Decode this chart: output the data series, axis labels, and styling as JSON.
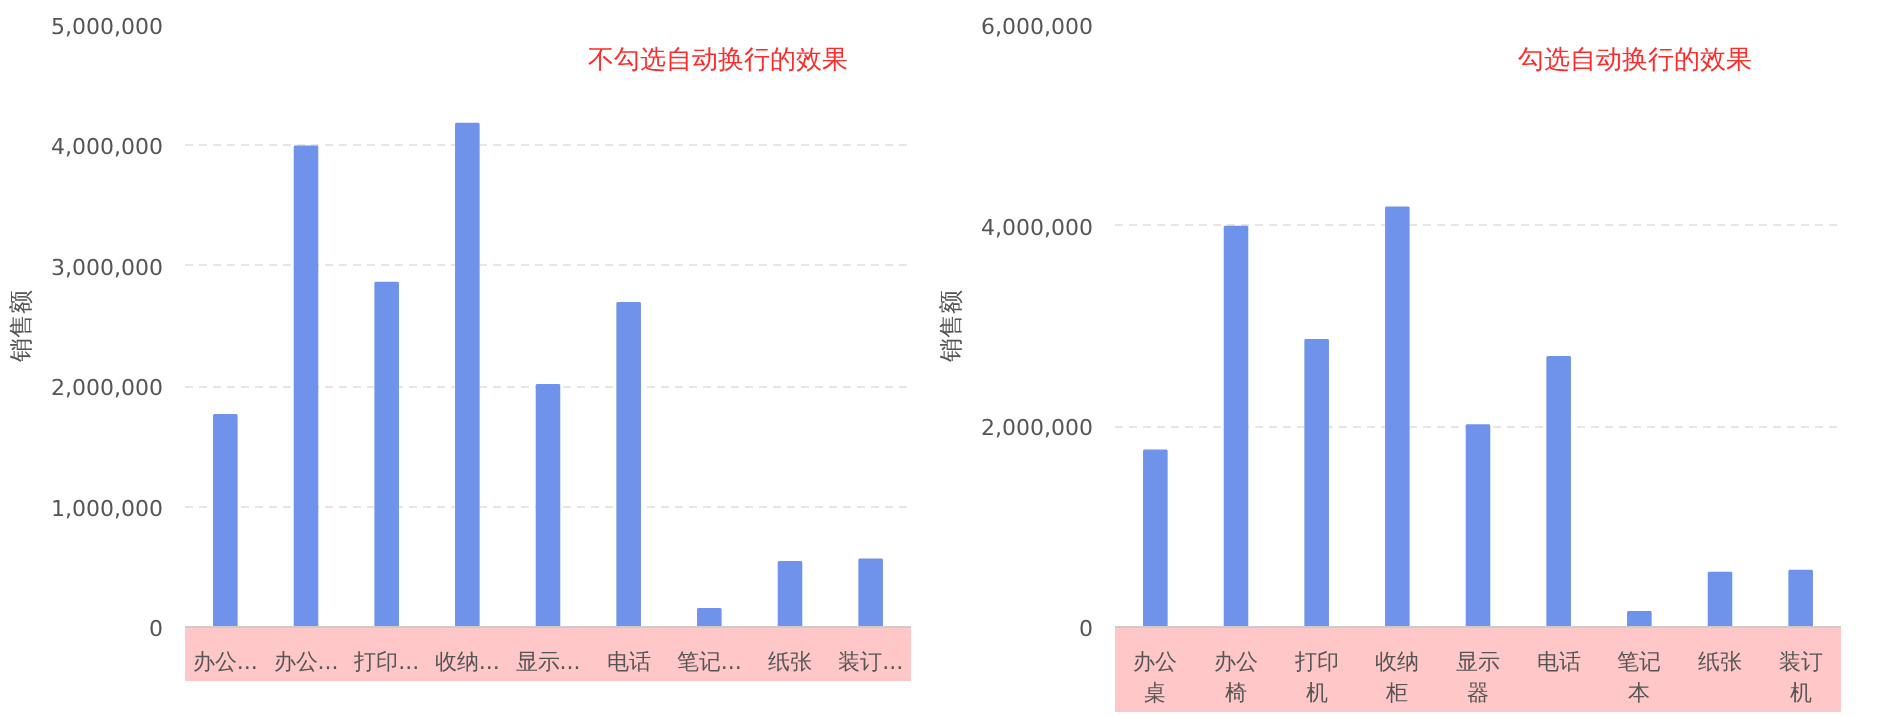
{
  "chart_data": [
    {
      "type": "bar",
      "ylabel": "销售额",
      "annotations": [
        "不勾选自动换行的效果"
      ],
      "categories": [
        "办公...",
        "办公...",
        "打印...",
        "收纳...",
        "显示...",
        "电话",
        "笔记...",
        "纸张",
        "装订..."
      ],
      "values": [
        1760000,
        3990000,
        2860000,
        4180000,
        2010000,
        2690000,
        150000,
        540000,
        560000
      ],
      "color": "#6f93eb",
      "ylim": [
        0,
        5000000
      ],
      "yticks": [
        {
          "value": 0,
          "label": "0"
        },
        {
          "value": 1000000,
          "label": "1,000,000"
        },
        {
          "value": 2000000,
          "label": "2,000,000"
        },
        {
          "value": 3000000,
          "label": "3,000,000"
        },
        {
          "value": 4000000,
          "label": "4,000,000"
        },
        {
          "value": 5000000,
          "label": "5,000,000"
        }
      ],
      "grid": "y"
    },
    {
      "type": "bar",
      "ylabel": "销售额",
      "annotations": [
        "勾选自动换行的效果"
      ],
      "categories": [
        "办公桌",
        "办公椅",
        "打印机",
        "收纳柜",
        "显示器",
        "电话",
        "笔记本",
        "纸张",
        "装订机"
      ],
      "values": [
        1760000,
        3990000,
        2860000,
        4180000,
        2010000,
        2690000,
        150000,
        540000,
        560000
      ],
      "color": "#6f93eb",
      "ylim": [
        0,
        6000000
      ],
      "yticks": [
        {
          "value": 0,
          "label": "0"
        },
        {
          "value": 2000000,
          "label": "2,000,000"
        },
        {
          "value": 4000000,
          "label": "4,000,000"
        },
        {
          "value": 6000000,
          "label": "6,000,000"
        }
      ],
      "grid": "y"
    }
  ]
}
